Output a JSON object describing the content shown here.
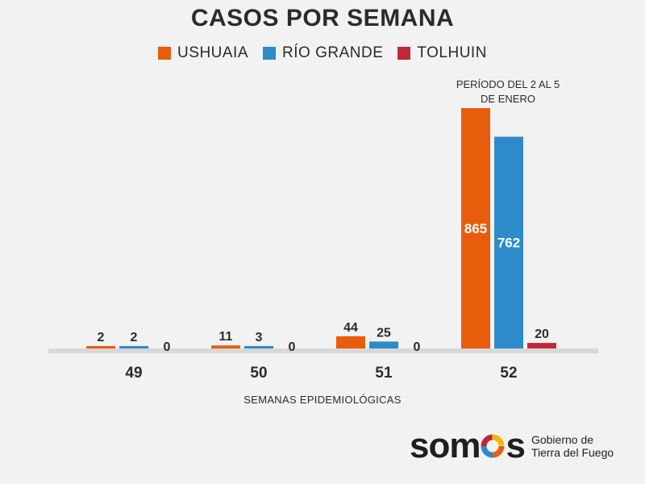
{
  "chart_data": {
    "type": "bar",
    "title": "CASOS POR SEMANA",
    "xlabel": "SEMANAS EPIDEMIOLÓGICAS",
    "ylabel": "",
    "categories": [
      "49",
      "50",
      "51",
      "52"
    ],
    "series": [
      {
        "name": "USHUAIA",
        "color": "#e85d0c",
        "values": [
          2,
          11,
          44,
          865
        ]
      },
      {
        "name": "RÍO GRANDE",
        "color": "#2e8bc9",
        "values": [
          2,
          3,
          25,
          762
        ]
      },
      {
        "name": "TOLHUIN",
        "color": "#c0283a",
        "values": [
          0,
          0,
          0,
          20
        ]
      }
    ],
    "ylim": [
      0,
      900
    ],
    "grid": false,
    "legend": "top-center",
    "annotation": {
      "lines": [
        "PERÍODO DEL 2 AL 5",
        "DE ENERO"
      ]
    }
  },
  "brand": {
    "logo_prefix": "som",
    "logo_suffix": "s",
    "gov_line1": "Gobierno de",
    "gov_line2": "Tierra del Fuego"
  }
}
